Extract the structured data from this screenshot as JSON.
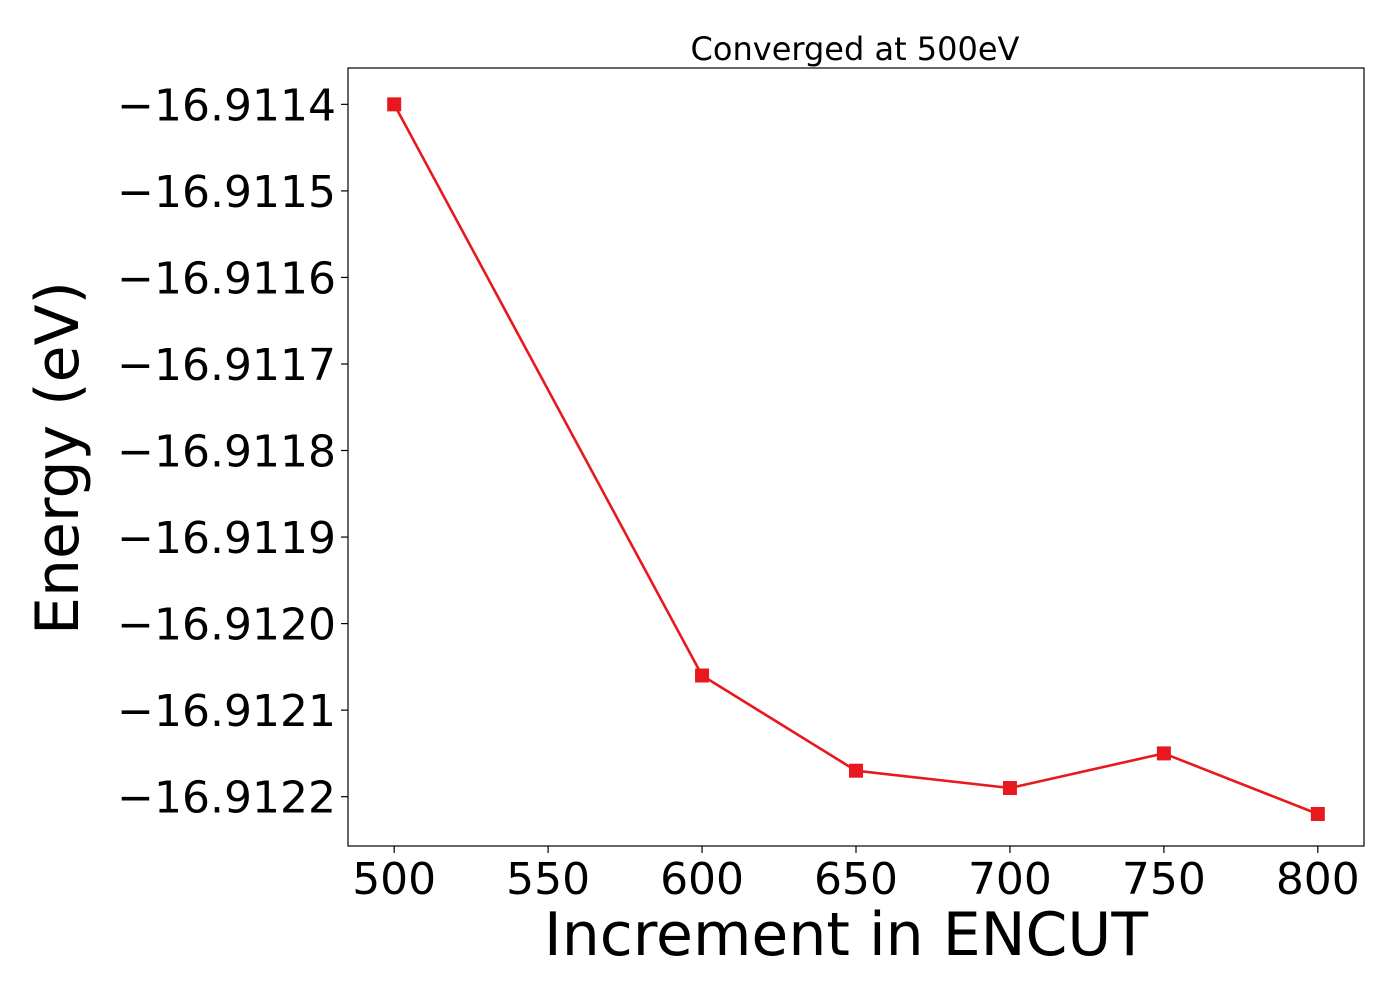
{
  "chart_data": {
    "type": "line",
    "title": "Converged at 500eV",
    "xlabel": "Increment in ENCUT",
    "ylabel": "Energy (eV)",
    "x": [
      500,
      600,
      650,
      700,
      750,
      800
    ],
    "series": [
      {
        "values": [
          -16.9114,
          -16.91206,
          -16.91217,
          -16.91219,
          -16.91215,
          -16.91222
        ],
        "color": "#e8191e",
        "marker": "square"
      }
    ],
    "xticks": [
      500,
      550,
      600,
      650,
      700,
      750,
      800
    ],
    "xtick_labels": [
      "500",
      "550",
      "600",
      "650",
      "700",
      "750",
      "800"
    ],
    "yticks": [
      -16.9114,
      -16.9115,
      -16.9116,
      -16.9117,
      -16.9118,
      -16.9119,
      -16.912,
      -16.9121,
      -16.9122
    ],
    "ytick_labels": [
      "−16.9114",
      "−16.9115",
      "−16.9116",
      "−16.9117",
      "−16.9118",
      "−16.9119",
      "−16.9120",
      "−16.9121",
      "−16.9122"
    ],
    "xlim": [
      485,
      815
    ],
    "ylim": [
      -16.912257,
      -16.911358
    ],
    "grid": false
  }
}
